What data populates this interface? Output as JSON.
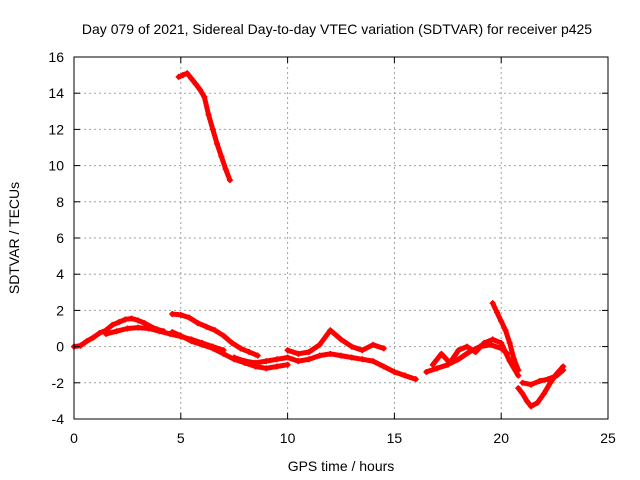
{
  "chart_data": {
    "type": "scatter",
    "title": "Day 079 of 2021, Sidereal Day-to-day VTEC variation (SDTVAR) for receiver p425",
    "xlabel": "GPS time / hours",
    "ylabel": "SDTVAR / TECUs",
    "xlim": [
      0,
      25
    ],
    "ylim": [
      -4,
      16
    ],
    "xticks": [
      0,
      5,
      10,
      15,
      20,
      25
    ],
    "yticks": [
      -4,
      -2,
      0,
      2,
      4,
      6,
      8,
      10,
      12,
      14,
      16
    ],
    "grid": true,
    "series_color": "#ff0000",
    "series": [
      {
        "name": "segment-1",
        "x": [
          0.0,
          0.3,
          0.6,
          0.9,
          1.2,
          1.5,
          1.8,
          2.1,
          2.4,
          2.7,
          3.0,
          3.3,
          3.6,
          3.9,
          4.2
        ],
        "y": [
          0.0,
          0.05,
          0.3,
          0.5,
          0.75,
          0.9,
          1.2,
          1.35,
          1.5,
          1.55,
          1.45,
          1.3,
          1.1,
          0.95,
          0.85
        ]
      },
      {
        "name": "segment-2",
        "x": [
          1.5,
          2.0,
          2.5,
          3.0,
          3.5,
          4.0,
          4.5,
          5.0,
          5.5,
          6.0,
          6.5,
          7.0
        ],
        "y": [
          0.7,
          0.85,
          1.0,
          1.05,
          1.0,
          0.85,
          0.7,
          0.55,
          0.4,
          0.2,
          0.0,
          -0.2
        ]
      },
      {
        "name": "segment-3",
        "x": [
          4.9,
          5.1,
          5.3,
          5.5,
          5.7,
          5.9,
          6.1,
          6.3,
          6.5,
          6.7,
          6.9,
          7.1,
          7.3
        ],
        "y": [
          14.9,
          15.0,
          15.1,
          14.8,
          14.5,
          14.2,
          13.8,
          12.8,
          12.0,
          11.2,
          10.5,
          9.8,
          9.2
        ]
      },
      {
        "name": "segment-4",
        "x": [
          4.6,
          5.0,
          5.4,
          5.8,
          6.2,
          6.6,
          7.0,
          7.4,
          7.8,
          8.2,
          8.6
        ],
        "y": [
          1.8,
          1.75,
          1.6,
          1.3,
          1.1,
          0.9,
          0.6,
          0.2,
          -0.1,
          -0.3,
          -0.5
        ]
      },
      {
        "name": "segment-5",
        "x": [
          4.6,
          5.0,
          5.5,
          6.0,
          6.5,
          7.0,
          7.5,
          8.0,
          8.5,
          9.0,
          9.5,
          10.0
        ],
        "y": [
          0.8,
          0.6,
          0.3,
          0.1,
          -0.1,
          -0.4,
          -0.7,
          -0.9,
          -1.1,
          -1.2,
          -1.1,
          -1.0
        ]
      },
      {
        "name": "segment-6",
        "x": [
          7.5,
          8.0,
          8.5,
          9.0,
          9.5,
          10.0,
          10.5,
          11.0,
          11.5,
          12.0,
          12.5,
          13.0,
          13.5,
          14.0,
          14.5,
          15.0,
          15.5,
          16.0
        ],
        "y": [
          -0.6,
          -0.8,
          -0.9,
          -0.8,
          -0.7,
          -0.6,
          -0.8,
          -0.7,
          -0.5,
          -0.4,
          -0.5,
          -0.6,
          -0.7,
          -0.8,
          -1.1,
          -1.4,
          -1.6,
          -1.8
        ]
      },
      {
        "name": "segment-7",
        "x": [
          10.0,
          10.5,
          11.0,
          11.5,
          12.0,
          12.5,
          13.0,
          13.5,
          14.0,
          14.5
        ],
        "y": [
          -0.2,
          -0.4,
          -0.3,
          0.1,
          0.9,
          0.4,
          0.0,
          -0.2,
          0.1,
          -0.1
        ]
      },
      {
        "name": "segment-8",
        "x": [
          16.5,
          17.0,
          17.5,
          18.0,
          18.5,
          19.0,
          19.5,
          20.0,
          20.3
        ],
        "y": [
          -1.4,
          -1.2,
          -1.0,
          -0.7,
          -0.3,
          0.0,
          0.1,
          -0.1,
          -0.4
        ]
      },
      {
        "name": "segment-9",
        "x": [
          16.8,
          17.2,
          17.6,
          18.0,
          18.4,
          18.8,
          19.2,
          19.6,
          20.0,
          20.4,
          20.8
        ],
        "y": [
          -1.0,
          -0.4,
          -0.9,
          -0.2,
          0.0,
          -0.3,
          0.2,
          0.4,
          0.2,
          -0.8,
          -1.6
        ]
      },
      {
        "name": "segment-10",
        "x": [
          19.6,
          19.8,
          20.0,
          20.2,
          20.4,
          20.6,
          20.8
        ],
        "y": [
          2.4,
          1.9,
          1.4,
          0.9,
          0.2,
          -0.7,
          -1.3
        ]
      },
      {
        "name": "segment-11",
        "x": [
          20.8,
          21.0,
          21.2,
          21.4,
          21.7,
          22.0,
          22.3,
          22.6,
          22.9
        ],
        "y": [
          -2.3,
          -2.6,
          -3.0,
          -3.3,
          -3.1,
          -2.6,
          -2.0,
          -1.5,
          -1.1
        ]
      },
      {
        "name": "segment-12",
        "x": [
          21.0,
          21.4,
          21.8,
          22.2,
          22.6,
          22.9
        ],
        "y": [
          -2.0,
          -2.1,
          -1.9,
          -1.8,
          -1.6,
          -1.3
        ]
      }
    ]
  }
}
